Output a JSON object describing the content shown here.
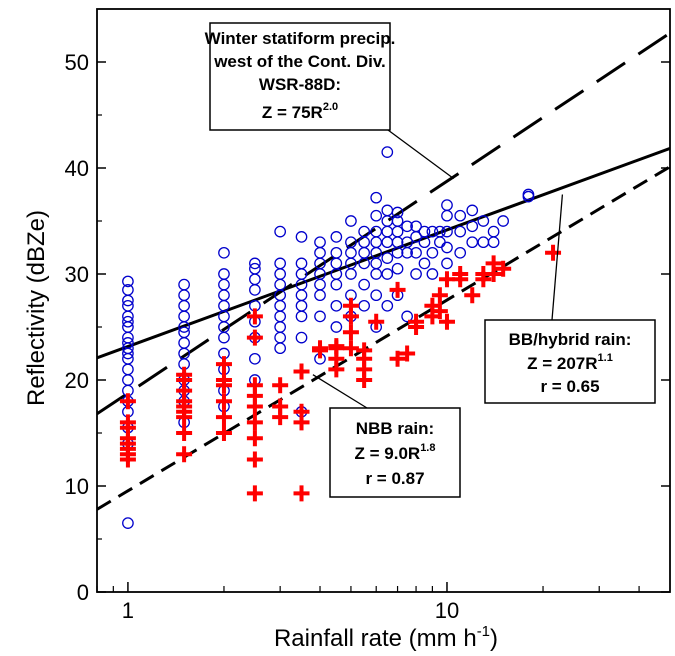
{
  "chart_data": {
    "type": "scatter",
    "x_scale": "log",
    "xlim": [
      0.8,
      50
    ],
    "ylim": [
      0,
      55
    ],
    "xlabel": "Rainfall rate (mm h",
    "xlabel_sup": "-1",
    "xlabel_end": ")",
    "ylabel": "Reflectivity (dBZe)",
    "x_ticks": [
      1,
      10
    ],
    "x_tick_labels": [
      "1",
      "10"
    ],
    "y_ticks": [
      0,
      10,
      20,
      30,
      40,
      50
    ],
    "y_tick_labels": [
      "0",
      "10",
      "20",
      "30",
      "40",
      "50"
    ],
    "grid": false,
    "series": [
      {
        "marker": "open-circle",
        "color": "#0000cc",
        "points": [
          [
            1,
            6.5
          ],
          [
            1,
            14
          ],
          [
            1,
            15.5
          ],
          [
            1,
            17
          ],
          [
            1,
            18
          ],
          [
            1,
            19
          ],
          [
            1,
            20
          ],
          [
            1,
            21
          ],
          [
            1,
            22
          ],
          [
            1,
            22.5
          ],
          [
            1,
            23
          ],
          [
            1,
            23.5
          ],
          [
            1,
            24
          ],
          [
            1,
            25
          ],
          [
            1,
            25.5
          ],
          [
            1,
            26
          ],
          [
            1,
            27
          ],
          [
            1,
            27.5
          ],
          [
            1,
            28.5
          ],
          [
            1,
            29.3
          ],
          [
            1.5,
            16
          ],
          [
            1.5,
            18
          ],
          [
            1.5,
            19
          ],
          [
            1.5,
            20
          ],
          [
            1.5,
            21.5
          ],
          [
            1.5,
            22.5
          ],
          [
            1.5,
            23.5
          ],
          [
            1.5,
            24.5
          ],
          [
            1.5,
            25
          ],
          [
            1.5,
            26
          ],
          [
            1.5,
            27
          ],
          [
            1.5,
            28
          ],
          [
            1.5,
            29
          ],
          [
            2,
            17.5
          ],
          [
            2,
            19
          ],
          [
            2,
            21
          ],
          [
            2,
            22.5
          ],
          [
            2,
            24
          ],
          [
            2,
            25
          ],
          [
            2,
            26
          ],
          [
            2,
            27
          ],
          [
            2,
            28
          ],
          [
            2,
            29
          ],
          [
            2,
            30
          ],
          [
            2,
            32
          ],
          [
            2.5,
            20
          ],
          [
            2.5,
            22
          ],
          [
            2.5,
            24
          ],
          [
            2.5,
            25.5
          ],
          [
            2.5,
            27
          ],
          [
            2.5,
            28.5
          ],
          [
            2.5,
            29.5
          ],
          [
            2.5,
            30.5
          ],
          [
            2.5,
            31
          ],
          [
            3,
            23
          ],
          [
            3,
            24
          ],
          [
            3,
            25
          ],
          [
            3,
            26
          ],
          [
            3,
            27
          ],
          [
            3,
            28
          ],
          [
            3,
            29
          ],
          [
            3,
            30
          ],
          [
            3,
            31
          ],
          [
            3,
            34
          ],
          [
            3.5,
            17
          ],
          [
            3.5,
            24
          ],
          [
            3.5,
            26
          ],
          [
            3.5,
            27
          ],
          [
            3.5,
            28
          ],
          [
            3.5,
            29
          ],
          [
            3.5,
            30
          ],
          [
            3.5,
            31
          ],
          [
            3.5,
            33.5
          ],
          [
            4,
            22
          ],
          [
            4,
            26
          ],
          [
            4,
            28
          ],
          [
            4,
            29
          ],
          [
            4,
            30
          ],
          [
            4,
            31
          ],
          [
            4,
            32
          ],
          [
            4,
            33
          ],
          [
            4.5,
            25
          ],
          [
            4.5,
            27
          ],
          [
            4.5,
            29
          ],
          [
            4.5,
            30
          ],
          [
            4.5,
            31
          ],
          [
            4.5,
            32
          ],
          [
            4.5,
            33.5
          ],
          [
            5,
            26
          ],
          [
            5,
            28
          ],
          [
            5,
            30
          ],
          [
            5,
            31
          ],
          [
            5,
            32
          ],
          [
            5,
            33
          ],
          [
            5,
            35
          ],
          [
            5.5,
            27
          ],
          [
            5.5,
            29
          ],
          [
            5.5,
            31
          ],
          [
            5.5,
            32
          ],
          [
            5.5,
            33
          ],
          [
            5.5,
            34
          ],
          [
            6,
            25
          ],
          [
            6,
            28
          ],
          [
            6,
            30
          ],
          [
            6,
            31
          ],
          [
            6,
            32
          ],
          [
            6,
            33
          ],
          [
            6,
            34
          ],
          [
            6,
            35.5
          ],
          [
            6,
            37.2
          ],
          [
            6.5,
            27
          ],
          [
            6.5,
            30
          ],
          [
            6.5,
            31.5
          ],
          [
            6.5,
            33
          ],
          [
            6.5,
            34
          ],
          [
            6.5,
            35
          ],
          [
            6.5,
            36
          ],
          [
            6.5,
            41.5
          ],
          [
            7,
            28
          ],
          [
            7,
            30.5
          ],
          [
            7,
            32
          ],
          [
            7,
            33
          ],
          [
            7,
            34
          ],
          [
            7,
            35
          ],
          [
            7,
            35.8
          ],
          [
            7.5,
            26
          ],
          [
            7.5,
            32
          ],
          [
            7.5,
            33
          ],
          [
            7.5,
            34.5
          ],
          [
            8,
            30
          ],
          [
            8,
            32
          ],
          [
            8,
            33.5
          ],
          [
            8,
            34.5
          ],
          [
            8.5,
            31
          ],
          [
            8.5,
            33
          ],
          [
            8.5,
            34
          ],
          [
            9,
            30
          ],
          [
            9,
            32
          ],
          [
            9,
            34
          ],
          [
            9.5,
            33
          ],
          [
            9.5,
            34
          ],
          [
            10,
            31
          ],
          [
            10,
            32.5
          ],
          [
            10,
            34
          ],
          [
            10,
            35.5
          ],
          [
            10,
            36.5
          ],
          [
            11,
            32
          ],
          [
            11,
            34
          ],
          [
            11,
            35.5
          ],
          [
            12,
            33
          ],
          [
            12,
            34.5
          ],
          [
            12,
            36
          ],
          [
            13,
            33
          ],
          [
            13,
            35
          ],
          [
            14,
            33
          ],
          [
            14,
            34
          ],
          [
            15,
            35
          ],
          [
            18,
            37.3
          ],
          [
            18,
            37.5
          ]
        ]
      },
      {
        "marker": "plus",
        "color": "#ff0000",
        "points": [
          [
            1,
            12.5
          ],
          [
            1,
            13
          ],
          [
            1,
            13.5
          ],
          [
            1,
            14
          ],
          [
            1,
            14.5
          ],
          [
            1,
            15.5
          ],
          [
            1,
            16
          ],
          [
            1,
            18
          ],
          [
            1.5,
            13
          ],
          [
            1.5,
            15
          ],
          [
            1.5,
            16.5
          ],
          [
            1.5,
            17
          ],
          [
            1.5,
            17.5
          ],
          [
            1.5,
            18
          ],
          [
            1.5,
            19
          ],
          [
            1.5,
            20
          ],
          [
            1.5,
            20.5
          ],
          [
            2,
            15
          ],
          [
            2,
            16.5
          ],
          [
            2,
            18
          ],
          [
            2,
            19.5
          ],
          [
            2,
            20
          ],
          [
            2,
            21.5
          ],
          [
            2.5,
            9.3
          ],
          [
            2.5,
            12.5
          ],
          [
            2.5,
            14.5
          ],
          [
            2.5,
            16
          ],
          [
            2.5,
            17.5
          ],
          [
            2.5,
            18.5
          ],
          [
            2.5,
            19.5
          ],
          [
            2.5,
            24
          ],
          [
            2.5,
            26
          ],
          [
            3,
            16.5
          ],
          [
            3,
            17.5
          ],
          [
            3,
            19.5
          ],
          [
            3.5,
            9.3
          ],
          [
            3.5,
            16
          ],
          [
            3.5,
            17
          ],
          [
            3.5,
            20.8
          ],
          [
            4,
            22.8
          ],
          [
            4,
            23
          ],
          [
            4.5,
            21
          ],
          [
            4.5,
            22
          ],
          [
            4.5,
            23
          ],
          [
            4.5,
            23.2
          ],
          [
            5,
            23
          ],
          [
            5,
            24.5
          ],
          [
            5,
            26
          ],
          [
            5,
            27
          ],
          [
            5.5,
            20
          ],
          [
            5.5,
            21
          ],
          [
            5.5,
            22
          ],
          [
            5.5,
            22.8
          ],
          [
            6,
            25.5
          ],
          [
            7,
            22
          ],
          [
            7,
            28.5
          ],
          [
            7.5,
            22.5
          ],
          [
            8,
            25
          ],
          [
            8,
            25.5
          ],
          [
            9,
            26
          ],
          [
            9,
            27
          ],
          [
            9.5,
            26.5
          ],
          [
            9.5,
            28
          ],
          [
            10,
            25.5
          ],
          [
            10,
            29.5
          ],
          [
            11,
            29.5
          ],
          [
            11,
            30
          ],
          [
            12,
            28
          ],
          [
            13,
            29.5
          ],
          [
            13,
            30
          ],
          [
            14,
            30
          ],
          [
            14,
            31
          ],
          [
            15,
            30.5
          ],
          [
            21.5,
            32
          ]
        ]
      }
    ],
    "fit_lines": [
      {
        "a": 75,
        "b": 2.0,
        "style": "long-dash",
        "x_range": [
          0.8,
          50
        ]
      },
      {
        "a": 207,
        "b": 1.1,
        "style": "solid",
        "x_range": [
          0.8,
          50
        ]
      },
      {
        "a": 9.0,
        "b": 1.8,
        "style": "short-dash",
        "x_range": [
          0.8,
          50
        ]
      }
    ],
    "annotations": [
      {
        "lines": [
          "Winter statiform precip.",
          "west of the Cont. Div.",
          "WSR-88D:"
        ],
        "formula": {
          "base": "Z = 75R",
          "exp": "2.0"
        },
        "extra": [],
        "pointer_to": [
          10.5,
          39
        ]
      },
      {
        "lines": [
          "BB/hybrid rain:"
        ],
        "formula": {
          "base": "Z = 207R",
          "exp": "1.1"
        },
        "extra": [
          "r = 0.65"
        ],
        "pointer_to": [
          23,
          37.5
        ]
      },
      {
        "lines": [
          "NBB rain:"
        ],
        "formula": {
          "base": "Z = 9.0R",
          "exp": "1.8"
        },
        "extra": [
          "r = 0.87"
        ],
        "pointer_to": [
          3.8,
          20.5
        ]
      }
    ]
  }
}
